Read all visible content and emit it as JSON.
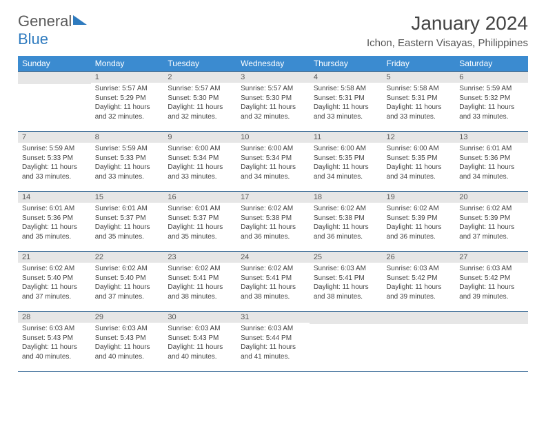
{
  "brand": {
    "part1": "General",
    "part2": "Blue"
  },
  "title": "January 2024",
  "location": "Ichon, Eastern Visayas, Philippines",
  "colors": {
    "header_bg": "#3b8bd0",
    "header_border": "#285e8e",
    "daynum_bg": "#e6e6e6",
    "brand_blue": "#2f7bbf",
    "text": "#444444"
  },
  "weekdays": [
    "Sunday",
    "Monday",
    "Tuesday",
    "Wednesday",
    "Thursday",
    "Friday",
    "Saturday"
  ],
  "start_offset": 1,
  "days": [
    {
      "n": 1,
      "sr": "5:57 AM",
      "ss": "5:29 PM",
      "dl": "11 hours and 32 minutes."
    },
    {
      "n": 2,
      "sr": "5:57 AM",
      "ss": "5:30 PM",
      "dl": "11 hours and 32 minutes."
    },
    {
      "n": 3,
      "sr": "5:57 AM",
      "ss": "5:30 PM",
      "dl": "11 hours and 32 minutes."
    },
    {
      "n": 4,
      "sr": "5:58 AM",
      "ss": "5:31 PM",
      "dl": "11 hours and 33 minutes."
    },
    {
      "n": 5,
      "sr": "5:58 AM",
      "ss": "5:31 PM",
      "dl": "11 hours and 33 minutes."
    },
    {
      "n": 6,
      "sr": "5:59 AM",
      "ss": "5:32 PM",
      "dl": "11 hours and 33 minutes."
    },
    {
      "n": 7,
      "sr": "5:59 AM",
      "ss": "5:33 PM",
      "dl": "11 hours and 33 minutes."
    },
    {
      "n": 8,
      "sr": "5:59 AM",
      "ss": "5:33 PM",
      "dl": "11 hours and 33 minutes."
    },
    {
      "n": 9,
      "sr": "6:00 AM",
      "ss": "5:34 PM",
      "dl": "11 hours and 33 minutes."
    },
    {
      "n": 10,
      "sr": "6:00 AM",
      "ss": "5:34 PM",
      "dl": "11 hours and 34 minutes."
    },
    {
      "n": 11,
      "sr": "6:00 AM",
      "ss": "5:35 PM",
      "dl": "11 hours and 34 minutes."
    },
    {
      "n": 12,
      "sr": "6:00 AM",
      "ss": "5:35 PM",
      "dl": "11 hours and 34 minutes."
    },
    {
      "n": 13,
      "sr": "6:01 AM",
      "ss": "5:36 PM",
      "dl": "11 hours and 34 minutes."
    },
    {
      "n": 14,
      "sr": "6:01 AM",
      "ss": "5:36 PM",
      "dl": "11 hours and 35 minutes."
    },
    {
      "n": 15,
      "sr": "6:01 AM",
      "ss": "5:37 PM",
      "dl": "11 hours and 35 minutes."
    },
    {
      "n": 16,
      "sr": "6:01 AM",
      "ss": "5:37 PM",
      "dl": "11 hours and 35 minutes."
    },
    {
      "n": 17,
      "sr": "6:02 AM",
      "ss": "5:38 PM",
      "dl": "11 hours and 36 minutes."
    },
    {
      "n": 18,
      "sr": "6:02 AM",
      "ss": "5:38 PM",
      "dl": "11 hours and 36 minutes."
    },
    {
      "n": 19,
      "sr": "6:02 AM",
      "ss": "5:39 PM",
      "dl": "11 hours and 36 minutes."
    },
    {
      "n": 20,
      "sr": "6:02 AM",
      "ss": "5:39 PM",
      "dl": "11 hours and 37 minutes."
    },
    {
      "n": 21,
      "sr": "6:02 AM",
      "ss": "5:40 PM",
      "dl": "11 hours and 37 minutes."
    },
    {
      "n": 22,
      "sr": "6:02 AM",
      "ss": "5:40 PM",
      "dl": "11 hours and 37 minutes."
    },
    {
      "n": 23,
      "sr": "6:02 AM",
      "ss": "5:41 PM",
      "dl": "11 hours and 38 minutes."
    },
    {
      "n": 24,
      "sr": "6:02 AM",
      "ss": "5:41 PM",
      "dl": "11 hours and 38 minutes."
    },
    {
      "n": 25,
      "sr": "6:03 AM",
      "ss": "5:41 PM",
      "dl": "11 hours and 38 minutes."
    },
    {
      "n": 26,
      "sr": "6:03 AM",
      "ss": "5:42 PM",
      "dl": "11 hours and 39 minutes."
    },
    {
      "n": 27,
      "sr": "6:03 AM",
      "ss": "5:42 PM",
      "dl": "11 hours and 39 minutes."
    },
    {
      "n": 28,
      "sr": "6:03 AM",
      "ss": "5:43 PM",
      "dl": "11 hours and 40 minutes."
    },
    {
      "n": 29,
      "sr": "6:03 AM",
      "ss": "5:43 PM",
      "dl": "11 hours and 40 minutes."
    },
    {
      "n": 30,
      "sr": "6:03 AM",
      "ss": "5:43 PM",
      "dl": "11 hours and 40 minutes."
    },
    {
      "n": 31,
      "sr": "6:03 AM",
      "ss": "5:44 PM",
      "dl": "11 hours and 41 minutes."
    }
  ],
  "labels": {
    "sunrise": "Sunrise:",
    "sunset": "Sunset:",
    "daylight": "Daylight:"
  }
}
